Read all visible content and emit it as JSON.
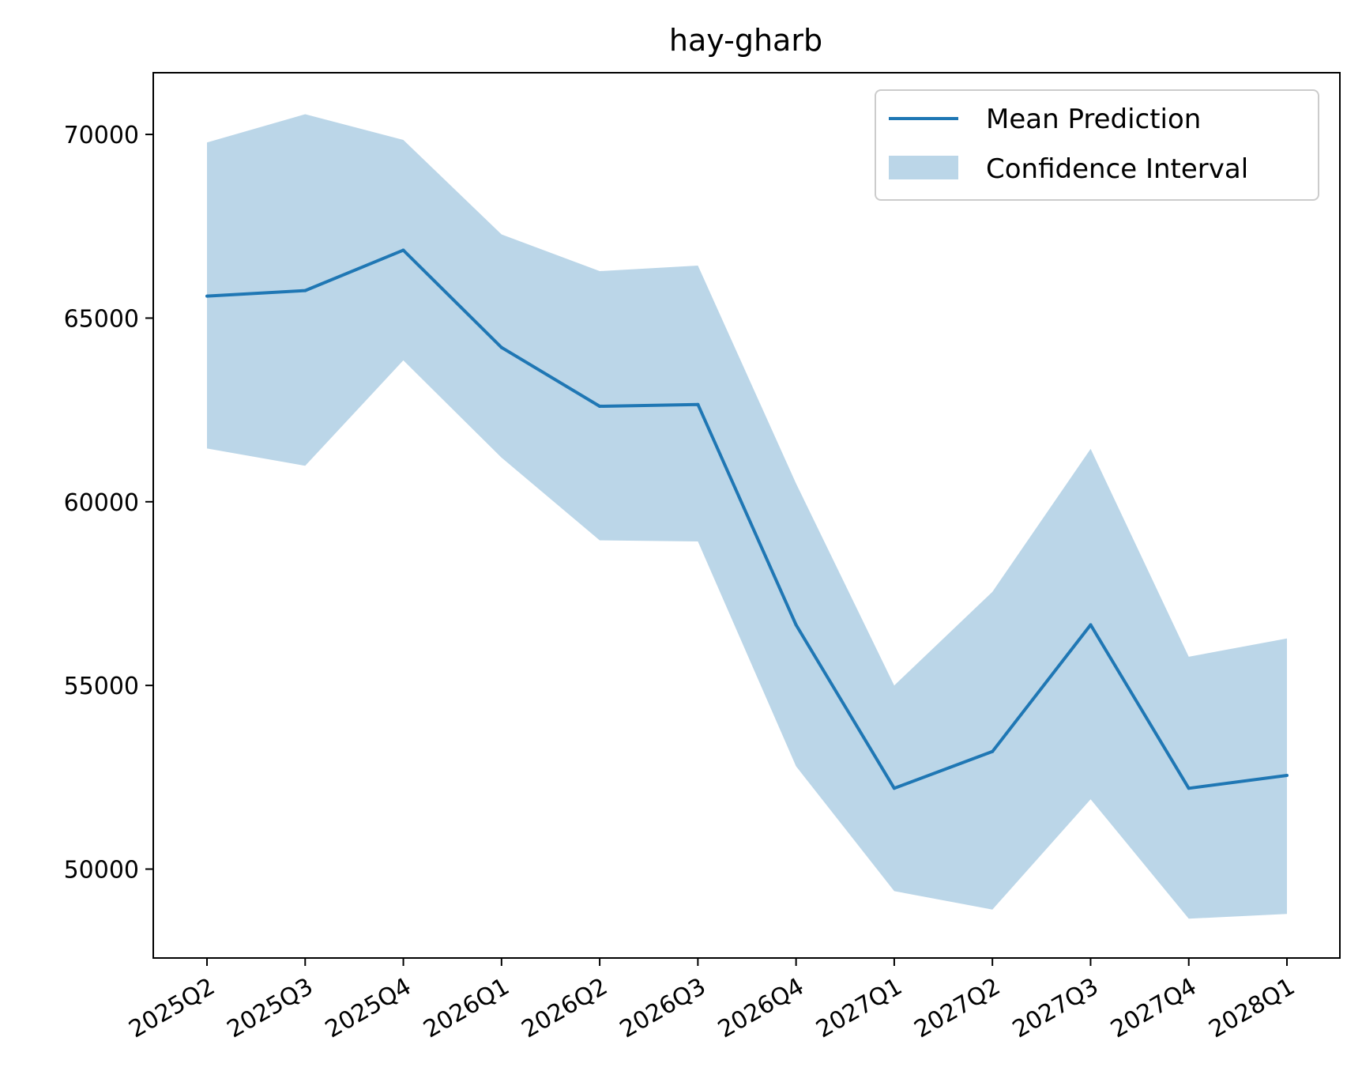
{
  "chart_data": {
    "type": "line",
    "title": "hay-gharb",
    "xlabel": "",
    "ylabel": "",
    "categories": [
      "2025Q2",
      "2025Q3",
      "2025Q4",
      "2026Q1",
      "2026Q2",
      "2026Q3",
      "2026Q4",
      "2027Q1",
      "2027Q2",
      "2027Q3",
      "2027Q4",
      "2028Q1"
    ],
    "series": [
      {
        "name": "Mean Prediction",
        "type": "line",
        "color": "#1f77b4",
        "values": [
          65600,
          65750,
          66850,
          64200,
          62600,
          62650,
          56650,
          52200,
          53200,
          56650,
          52200,
          52550
        ]
      },
      {
        "name": "Confidence Interval",
        "type": "band",
        "color": "#1f77b4",
        "opacity": 0.3,
        "lower": [
          61450,
          60980,
          63850,
          61200,
          58950,
          58920,
          52800,
          49400,
          48900,
          51900,
          48650,
          48780
        ],
        "upper": [
          69780,
          70550,
          69850,
          67280,
          66280,
          66430,
          60500,
          55000,
          57550,
          61440,
          55780,
          56280
        ]
      }
    ],
    "yticks": [
      50000,
      55000,
      60000,
      65000,
      70000
    ],
    "ylim": [
      47580,
      71680
    ],
    "grid": false,
    "legend_position": "top-right"
  }
}
